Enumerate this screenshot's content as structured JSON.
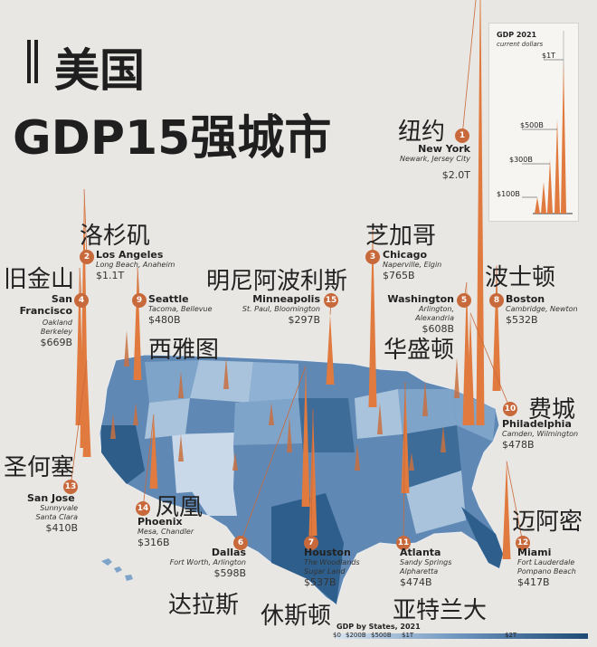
{
  "title": {
    "line1": "美国",
    "line2": "GDP15强城市"
  },
  "inset": {
    "title": "GDP 2021",
    "subtitle": "current dollars",
    "ticks": [
      "$1T",
      "$500B",
      "$300B",
      "$100B"
    ]
  },
  "legend": {
    "title": "GDP by States, 2021",
    "ticks": [
      "$0",
      "$200B",
      "$500B",
      "$1T",
      "$2T"
    ]
  },
  "cities": [
    {
      "rank": "1",
      "cn": "纽约",
      "name": "New York",
      "sub1": "Newark, Jersey City",
      "sub2": "",
      "value": "$2.0T"
    },
    {
      "rank": "2",
      "cn": "洛杉矶",
      "name": "Los Angeles",
      "sub1": "Long Beach, Anaheim",
      "sub2": "",
      "value": "$1.1T"
    },
    {
      "rank": "3",
      "cn": "芝加哥",
      "name": "Chicago",
      "sub1": "Naperville, Elgin",
      "sub2": "",
      "value": "$765B"
    },
    {
      "rank": "4",
      "cn": "旧金山",
      "name": "San Francisco",
      "sub1": "Oakland",
      "sub2": "Berkeley",
      "value": "$669B"
    },
    {
      "rank": "5",
      "cn": "华盛顿",
      "name": "Washington",
      "sub1": "Arlington, Alexandria",
      "sub2": "",
      "value": "$608B"
    },
    {
      "rank": "6",
      "cn": "达拉斯",
      "name": "Dallas",
      "sub1": "Fort Worth, Arlington",
      "sub2": "",
      "value": "$598B"
    },
    {
      "rank": "7",
      "cn": "休斯顿",
      "name": "Houston",
      "sub1": "The Woodlands",
      "sub2": "Sugar Land",
      "value": "$537B"
    },
    {
      "rank": "8",
      "cn": "波士顿",
      "name": "Boston",
      "sub1": "Cambridge, Newton",
      "sub2": "",
      "value": "$532B"
    },
    {
      "rank": "9",
      "cn": "西雅图",
      "name": "Seattle",
      "sub1": "Tacoma, Bellevue",
      "sub2": "",
      "value": "$480B"
    },
    {
      "rank": "10",
      "cn": "费城",
      "name": "Philadelphia",
      "sub1": "Camden, Wilmington",
      "sub2": "",
      "value": "$478B"
    },
    {
      "rank": "11",
      "cn": "亚特兰大",
      "name": "Atlanta",
      "sub1": "Sandy Springs",
      "sub2": "Alpharetta",
      "value": "$474B"
    },
    {
      "rank": "12",
      "cn": "迈阿密",
      "name": "Miami",
      "sub1": "Fort Lauderdale",
      "sub2": "Pompano Beach",
      "value": "$417B"
    },
    {
      "rank": "13",
      "cn": "圣何塞",
      "name": "San Jose",
      "sub1": "Sunnyvale",
      "sub2": "Santa Clara",
      "value": "$410B"
    },
    {
      "rank": "14",
      "cn": "凤凰",
      "name": "Phoenix",
      "sub1": "Mesa, Chandler",
      "sub2": "",
      "value": "$316B"
    },
    {
      "rank": "15",
      "cn": "明尼阿波利斯",
      "name": "Minneapolis",
      "sub1": "St. Paul, Bloomington",
      "sub2": "",
      "value": "$297B"
    }
  ],
  "colors": {
    "spike": "#e07a3e",
    "badge": "#c8693b",
    "state_dark": "#2e5f8c",
    "state_light": "#a9c3dc"
  },
  "chart_data": {
    "type": "bar",
    "title": "",
    "categories": [
      "New York",
      "Los Angeles",
      "Chicago",
      "San Francisco",
      "Washington",
      "Dallas",
      "Houston",
      "Boston",
      "Seattle",
      "Philadelphia",
      "Atlanta",
      "Miami",
      "San Jose",
      "Phoenix",
      "Minneapolis"
    ],
    "values": [
      2000,
      1100,
      765,
      669,
      608,
      598,
      537,
      532,
      480,
      478,
      474,
      417,
      410,
      316,
      297
    ],
    "ylabel": "",
    "units": "billion USD"
  }
}
